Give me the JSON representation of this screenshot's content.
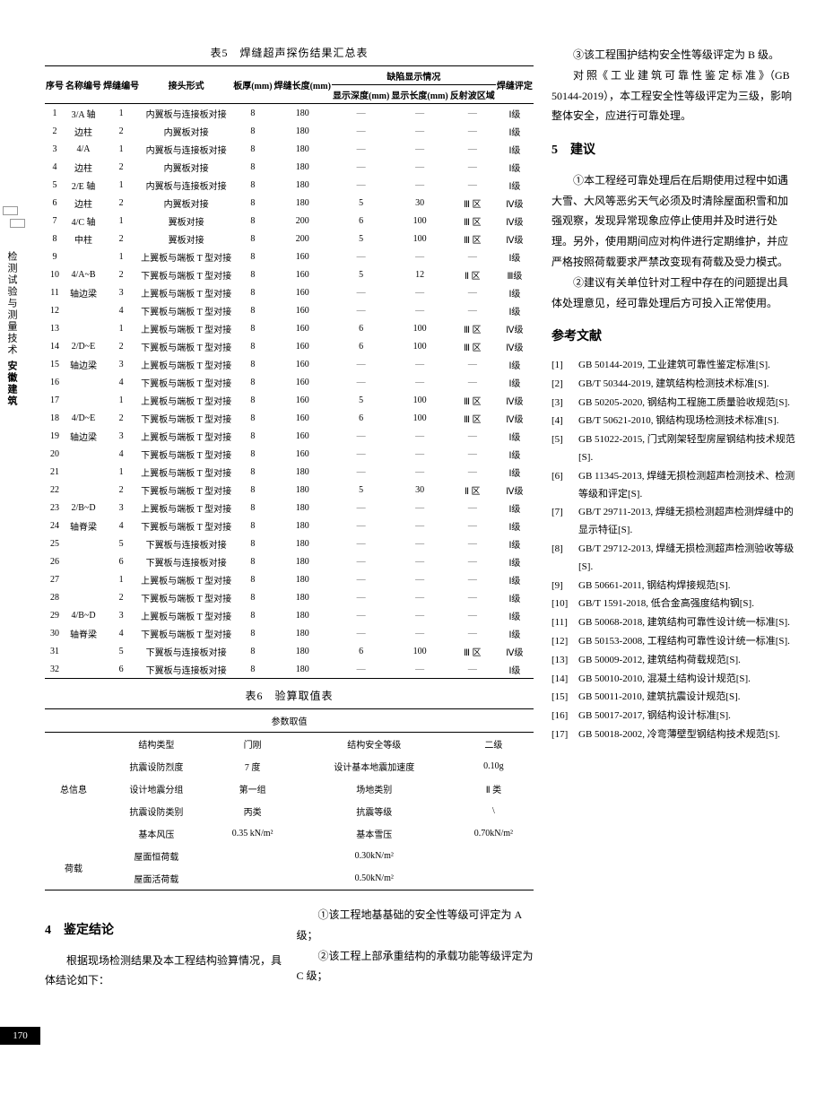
{
  "sidebar": {
    "label1": "检测试验与测量技术",
    "label2": "安徽建筑"
  },
  "pageNum": "170",
  "table5": {
    "title": "表5　焊缝超声探伤结果汇总表",
    "headers": {
      "seq": "序号",
      "name": "名称编号",
      "weld": "焊缝编号",
      "joint": "接头形式",
      "thick": "板厚(mm)",
      "len": "焊缝长度(mm)",
      "defect": "缺陷显示情况",
      "depth": "显示深度(mm)",
      "dlen": "显示长度(mm)",
      "refl": "反射波区域",
      "rate": "焊缝评定"
    },
    "rows": [
      {
        "n": "1",
        "name": "3/A 轴",
        "w": "1",
        "j": "内翼板与连接板对接",
        "t": "8",
        "l": "180",
        "d": "—",
        "dl": "—",
        "r": "—",
        "g": "Ⅰ级"
      },
      {
        "n": "2",
        "name": "边柱",
        "w": "2",
        "j": "内翼板对接",
        "t": "8",
        "l": "180",
        "d": "—",
        "dl": "—",
        "r": "—",
        "g": "Ⅰ级"
      },
      {
        "n": "3",
        "name": "4/A",
        "w": "1",
        "j": "内翼板与连接板对接",
        "t": "8",
        "l": "180",
        "d": "—",
        "dl": "—",
        "r": "—",
        "g": "Ⅰ级"
      },
      {
        "n": "4",
        "name": "边柱",
        "w": "2",
        "j": "内翼板对接",
        "t": "8",
        "l": "180",
        "d": "—",
        "dl": "—",
        "r": "—",
        "g": "Ⅰ级"
      },
      {
        "n": "5",
        "name": "2/E 轴",
        "w": "1",
        "j": "内翼板与连接板对接",
        "t": "8",
        "l": "180",
        "d": "—",
        "dl": "—",
        "r": "—",
        "g": "Ⅰ级"
      },
      {
        "n": "6",
        "name": "边柱",
        "w": "2",
        "j": "内翼板对接",
        "t": "8",
        "l": "180",
        "d": "5",
        "dl": "30",
        "r": "Ⅲ 区",
        "g": "Ⅳ级"
      },
      {
        "n": "7",
        "name": "4/C 轴",
        "w": "1",
        "j": "翼板对接",
        "t": "8",
        "l": "200",
        "d": "6",
        "dl": "100",
        "r": "Ⅲ 区",
        "g": "Ⅳ级"
      },
      {
        "n": "8",
        "name": "中柱",
        "w": "2",
        "j": "翼板对接",
        "t": "8",
        "l": "200",
        "d": "5",
        "dl": "100",
        "r": "Ⅲ 区",
        "g": "Ⅳ级"
      },
      {
        "n": "9",
        "name": "",
        "w": "1",
        "j": "上翼板与端板 T 型对接",
        "t": "8",
        "l": "160",
        "d": "—",
        "dl": "—",
        "r": "—",
        "g": "Ⅰ级"
      },
      {
        "n": "10",
        "name": "4/A~B",
        "w": "2",
        "j": "下翼板与端板 T 型对接",
        "t": "8",
        "l": "160",
        "d": "5",
        "dl": "12",
        "r": "Ⅱ 区",
        "g": "Ⅲ级"
      },
      {
        "n": "11",
        "name": "轴边梁",
        "w": "3",
        "j": "上翼板与端板 T 型对接",
        "t": "8",
        "l": "160",
        "d": "—",
        "dl": "—",
        "r": "—",
        "g": "Ⅰ级"
      },
      {
        "n": "12",
        "name": "",
        "w": "4",
        "j": "下翼板与端板 T 型对接",
        "t": "8",
        "l": "160",
        "d": "—",
        "dl": "—",
        "r": "—",
        "g": "Ⅰ级"
      },
      {
        "n": "13",
        "name": "",
        "w": "1",
        "j": "上翼板与端板 T 型对接",
        "t": "8",
        "l": "160",
        "d": "6",
        "dl": "100",
        "r": "Ⅲ 区",
        "g": "Ⅳ级"
      },
      {
        "n": "14",
        "name": "2/D~E",
        "w": "2",
        "j": "下翼板与端板 T 型对接",
        "t": "8",
        "l": "160",
        "d": "6",
        "dl": "100",
        "r": "Ⅲ 区",
        "g": "Ⅳ级"
      },
      {
        "n": "15",
        "name": "轴边梁",
        "w": "3",
        "j": "上翼板与端板 T 型对接",
        "t": "8",
        "l": "160",
        "d": "—",
        "dl": "—",
        "r": "—",
        "g": "Ⅰ级"
      },
      {
        "n": "16",
        "name": "",
        "w": "4",
        "j": "下翼板与端板 T 型对接",
        "t": "8",
        "l": "160",
        "d": "—",
        "dl": "—",
        "r": "—",
        "g": "Ⅰ级"
      },
      {
        "n": "17",
        "name": "",
        "w": "1",
        "j": "上翼板与端板 T 型对接",
        "t": "8",
        "l": "160",
        "d": "5",
        "dl": "100",
        "r": "Ⅲ 区",
        "g": "Ⅳ级"
      },
      {
        "n": "18",
        "name": "4/D~E",
        "w": "2",
        "j": "下翼板与端板 T 型对接",
        "t": "8",
        "l": "160",
        "d": "6",
        "dl": "100",
        "r": "Ⅲ 区",
        "g": "Ⅳ级"
      },
      {
        "n": "19",
        "name": "轴边梁",
        "w": "3",
        "j": "上翼板与端板 T 型对接",
        "t": "8",
        "l": "160",
        "d": "—",
        "dl": "—",
        "r": "—",
        "g": "Ⅰ级"
      },
      {
        "n": "20",
        "name": "",
        "w": "4",
        "j": "下翼板与端板 T 型对接",
        "t": "8",
        "l": "160",
        "d": "—",
        "dl": "—",
        "r": "—",
        "g": "Ⅰ级"
      },
      {
        "n": "21",
        "name": "",
        "w": "1",
        "j": "上翼板与端板 T 型对接",
        "t": "8",
        "l": "180",
        "d": "—",
        "dl": "—",
        "r": "—",
        "g": "Ⅰ级"
      },
      {
        "n": "22",
        "name": "",
        "w": "2",
        "j": "下翼板与端板 T 型对接",
        "t": "8",
        "l": "180",
        "d": "5",
        "dl": "30",
        "r": "Ⅱ 区",
        "g": "Ⅳ级"
      },
      {
        "n": "23",
        "name": "2/B~D",
        "w": "3",
        "j": "上翼板与端板 T 型对接",
        "t": "8",
        "l": "180",
        "d": "—",
        "dl": "—",
        "r": "—",
        "g": "Ⅰ级"
      },
      {
        "n": "24",
        "name": "轴脊梁",
        "w": "4",
        "j": "下翼板与端板 T 型对接",
        "t": "8",
        "l": "180",
        "d": "—",
        "dl": "—",
        "r": "—",
        "g": "Ⅰ级"
      },
      {
        "n": "25",
        "name": "",
        "w": "5",
        "j": "下翼板与连接板对接",
        "t": "8",
        "l": "180",
        "d": "—",
        "dl": "—",
        "r": "—",
        "g": "Ⅰ级"
      },
      {
        "n": "26",
        "name": "",
        "w": "6",
        "j": "下翼板与连接板对接",
        "t": "8",
        "l": "180",
        "d": "—",
        "dl": "—",
        "r": "—",
        "g": "Ⅰ级"
      },
      {
        "n": "27",
        "name": "",
        "w": "1",
        "j": "上翼板与端板 T 型对接",
        "t": "8",
        "l": "180",
        "d": "—",
        "dl": "—",
        "r": "—",
        "g": "Ⅰ级"
      },
      {
        "n": "28",
        "name": "",
        "w": "2",
        "j": "下翼板与端板 T 型对接",
        "t": "8",
        "l": "180",
        "d": "—",
        "dl": "—",
        "r": "—",
        "g": "Ⅰ级"
      },
      {
        "n": "29",
        "name": "4/B~D",
        "w": "3",
        "j": "上翼板与端板 T 型对接",
        "t": "8",
        "l": "180",
        "d": "—",
        "dl": "—",
        "r": "—",
        "g": "Ⅰ级"
      },
      {
        "n": "30",
        "name": "轴脊梁",
        "w": "4",
        "j": "下翼板与端板 T 型对接",
        "t": "8",
        "l": "180",
        "d": "—",
        "dl": "—",
        "r": "—",
        "g": "Ⅰ级"
      },
      {
        "n": "31",
        "name": "",
        "w": "5",
        "j": "下翼板与连接板对接",
        "t": "8",
        "l": "180",
        "d": "6",
        "dl": "100",
        "r": "Ⅲ 区",
        "g": "Ⅳ级"
      },
      {
        "n": "32",
        "name": "",
        "w": "6",
        "j": "下翼板与连接板对接",
        "t": "8",
        "l": "180",
        "d": "—",
        "dl": "—",
        "r": "—",
        "g": "Ⅰ级"
      }
    ]
  },
  "table6": {
    "title": "表6　验算取值表",
    "paramHeader": "参数取值",
    "rows": [
      {
        "cat": "总信息",
        "items": [
          [
            "结构类型",
            "门刚",
            "结构安全等级",
            "二级"
          ],
          [
            "抗震设防烈度",
            "7 度",
            "设计基本地震加速度",
            "0.10g"
          ],
          [
            "设计地震分组",
            "第一组",
            "场地类别",
            "Ⅱ 类"
          ],
          [
            "抗震设防类别",
            "丙类",
            "抗震等级",
            "\\"
          ],
          [
            "基本风压",
            "0.35 kN/m²",
            "基本雪压",
            "0.70kN/m²"
          ]
        ]
      },
      {
        "cat": "荷载",
        "items": [
          [
            "屋面恒荷载",
            "",
            "0.30kN/m²",
            ""
          ],
          [
            "屋面活荷载",
            "",
            "0.50kN/m²",
            ""
          ]
        ]
      }
    ]
  },
  "section4": {
    "title": "4　鉴定结论",
    "p1": "根据现场检测结果及本工程结构验算情况，具体结论如下：",
    "p2": "①该工程地基基础的安全性等级可评定为 A 级；",
    "p3": "②该工程上部承重结构的承载功能等级评定为 C 级；"
  },
  "rightCol": {
    "p1": "③该工程围护结构安全性等级评定为 B 级。",
    "p2": "对 照《 工 业 建 筑 可 靠 性 鉴 定 标 准 》（GB 50144-2019），本工程安全性等级评定为三级，影响整体安全，应进行可靠处理。",
    "s5title": "5　建议",
    "s5p1": "①本工程经可靠处理后在后期使用过程中如遇大雪、大风等恶劣天气必须及时清除屋面积雪和加强观察，发现异常现象应停止使用并及时进行处理。另外，使用期间应对构件进行定期维护，并应严格按照荷载要求严禁改变现有荷载及受力模式。",
    "s5p2": "②建议有关单位针对工程中存在的问题提出具体处理意见，经可靠处理后方可投入正常使用。",
    "refTitle": "参考文献",
    "refs": [
      "GB 50144-2019, 工业建筑可靠性鉴定标准[S].",
      "GB/T 50344-2019, 建筑结构检测技术标准[S].",
      "GB 50205-2020, 钢结构工程施工质量验收规范[S].",
      "GB/T 50621-2010, 钢结构现场检测技术标准[S].",
      "GB 51022-2015, 门式刚架轻型房屋钢结构技术规范[S].",
      "GB 11345-2013, 焊缝无损检测超声检测技术、检测等级和评定[S].",
      "GB/T 29711-2013, 焊缝无损检测超声检测焊缝中的显示特征[S].",
      "GB/T 29712-2013, 焊缝无损检测超声检测验收等级[S].",
      "GB 50661-2011, 钢结构焊接规范[S].",
      "GB/T 1591-2018, 低合金高强度结构钢[S].",
      "GB 50068-2018, 建筑结构可靠性设计统一标准[S].",
      "GB 50153-2008, 工程结构可靠性设计统一标准[S].",
      "GB 50009-2012, 建筑结构荷载规范[S].",
      "GB 50010-2010, 混凝土结构设计规范[S].",
      "GB 50011-2010, 建筑抗震设计规范[S].",
      "GB 50017-2017, 钢结构设计标准[S].",
      "GB 50018-2002, 冷弯薄壁型钢结构技术规范[S]."
    ]
  }
}
